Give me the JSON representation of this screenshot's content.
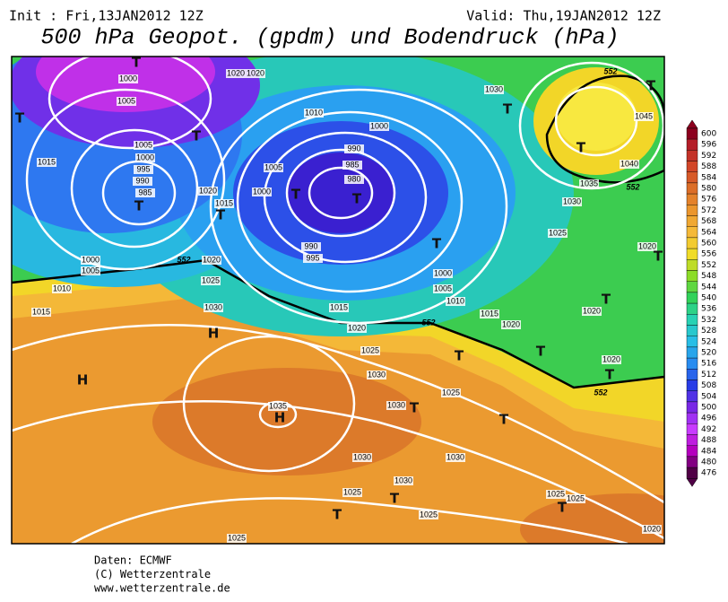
{
  "header": {
    "init": "Init : Fri,13JAN2012 12Z",
    "valid": "Valid: Thu,19JAN2012 12Z",
    "title": "500 hPa Geopot. (gpdm) und Bodendruck (hPa)"
  },
  "map": {
    "contour_labels": [
      "1000",
      "1005",
      "1005",
      "1000",
      "995",
      "990",
      "985",
      "1015",
      "1000",
      "1005",
      "1010",
      "1015",
      "1020",
      "1025",
      "1030",
      "1020",
      "1015",
      "1005",
      "1000",
      "1010",
      "1000",
      "990",
      "985",
      "980",
      "990",
      "995",
      "1000",
      "1005",
      "1010",
      "1015",
      "1015",
      "1020",
      "1020",
      "1025",
      "1030",
      "1025",
      "1030",
      "1035",
      "1030",
      "1030",
      "1030",
      "1025",
      "1025",
      "1025",
      "1025",
      "1025",
      "1020",
      "1030",
      "1045",
      "1040",
      "1035",
      "1030",
      "1025",
      "1020",
      "1020",
      "1020",
      "1020",
      "1020"
    ],
    "height_labels": [
      "552",
      "552",
      "552",
      "552",
      "552"
    ],
    "markers": [
      "T",
      "T",
      "T",
      "T",
      "T",
      "T",
      "T",
      "T",
      "T",
      "T",
      "T",
      "T",
      "T",
      "T",
      "T",
      "T",
      "T",
      "T",
      "T",
      "T",
      "T",
      "H",
      "H",
      "H"
    ]
  },
  "colorbar": {
    "ticks": [
      600,
      596,
      592,
      588,
      584,
      580,
      576,
      572,
      568,
      564,
      560,
      556,
      552,
      548,
      544,
      540,
      536,
      532,
      528,
      524,
      520,
      516,
      512,
      508,
      504,
      500,
      496,
      492,
      488,
      484,
      480,
      476
    ]
  },
  "footer": {
    "lines": [
      "Daten: ECMWF",
      "(C) Wetterzentrale",
      "www.wetterzentrale.de"
    ]
  }
}
